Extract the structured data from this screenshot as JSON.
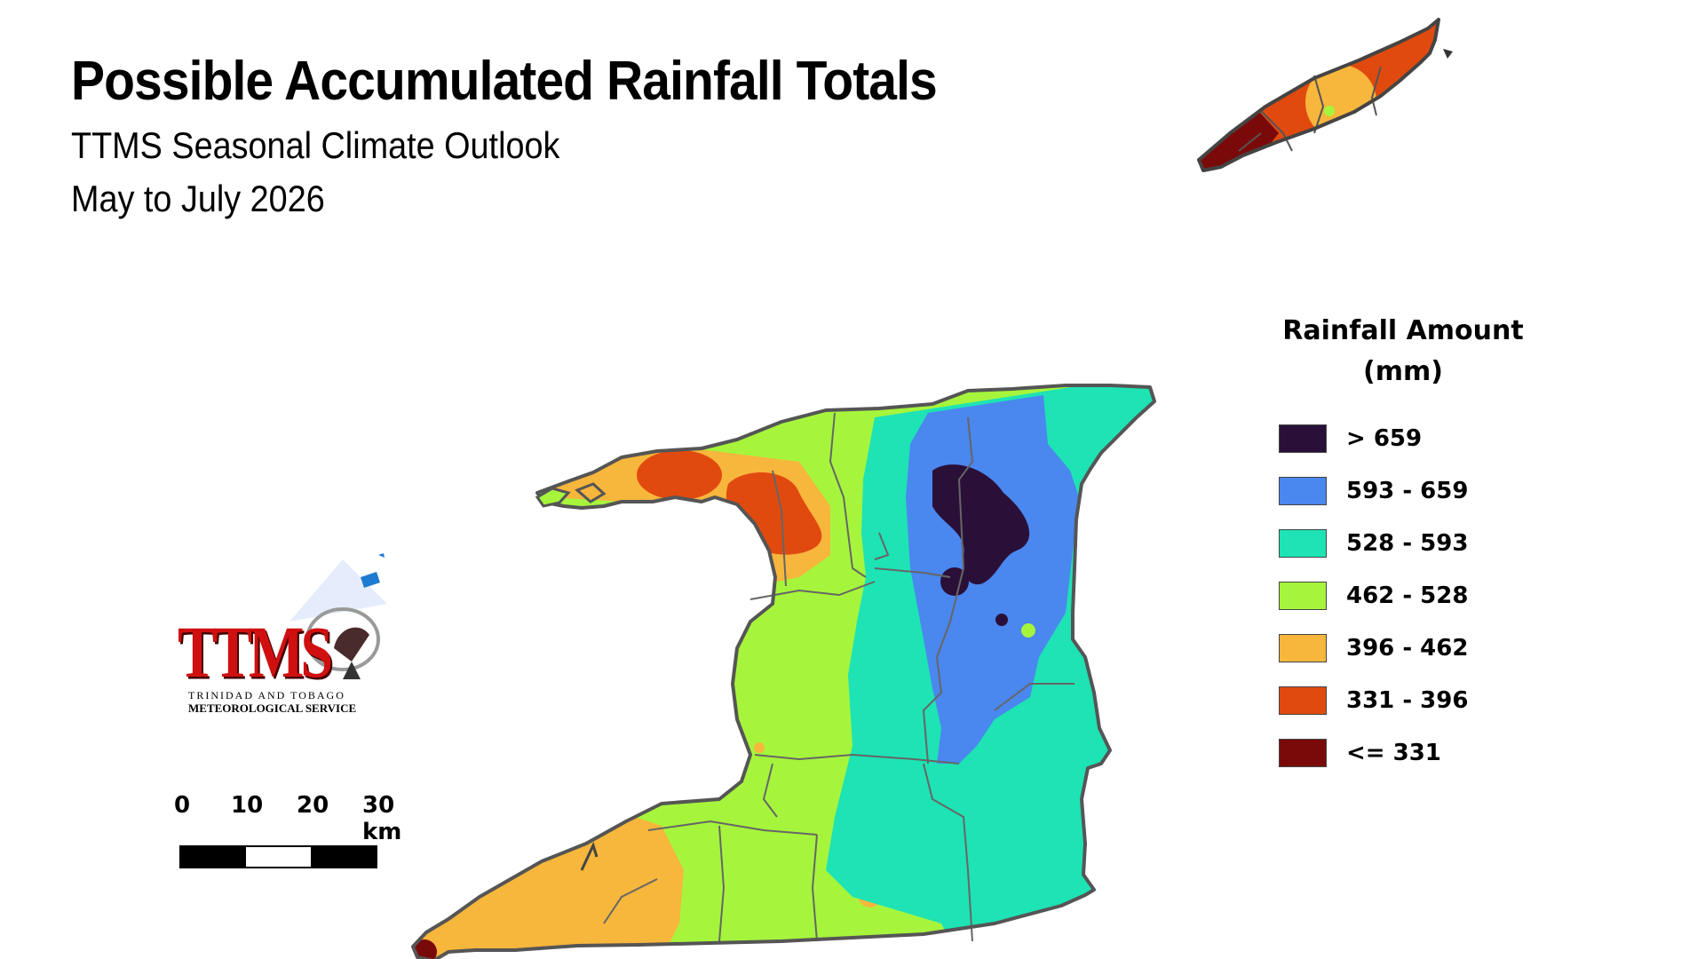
{
  "header": {
    "title": "Possible Accumulated Rainfall Totals",
    "subtitle": "TTMS Seasonal Climate Outlook",
    "period": "May to July 2026"
  },
  "legend": {
    "title_line1": "Rainfall Amount",
    "title_line2": "(mm)",
    "classes": [
      {
        "label": "> 659",
        "color": "#2a1038"
      },
      {
        "label": "593 - 659",
        "color": "#4a87ee"
      },
      {
        "label": "528 - 593",
        "color": "#1ee3b4"
      },
      {
        "label": "462 - 528",
        "color": "#a6f53c"
      },
      {
        "label": "396 - 462",
        "color": "#f7b63c"
      },
      {
        "label": "331 - 396",
        "color": "#e14a0f"
      },
      {
        "label": "<= 331",
        "color": "#7a0a0a"
      }
    ]
  },
  "scale_bar": {
    "ticks": [
      "0",
      "10",
      "20",
      "30 km"
    ]
  },
  "logo": {
    "acronym": "TTMS",
    "line1": "TRINIDAD AND TOBAGO",
    "line2": "METEOROLOGICAL SERVICE"
  },
  "map": {
    "islands": [
      "Trinidad",
      "Tobago"
    ],
    "border_color": "#555555",
    "icon": "ttms-logo-icon"
  }
}
